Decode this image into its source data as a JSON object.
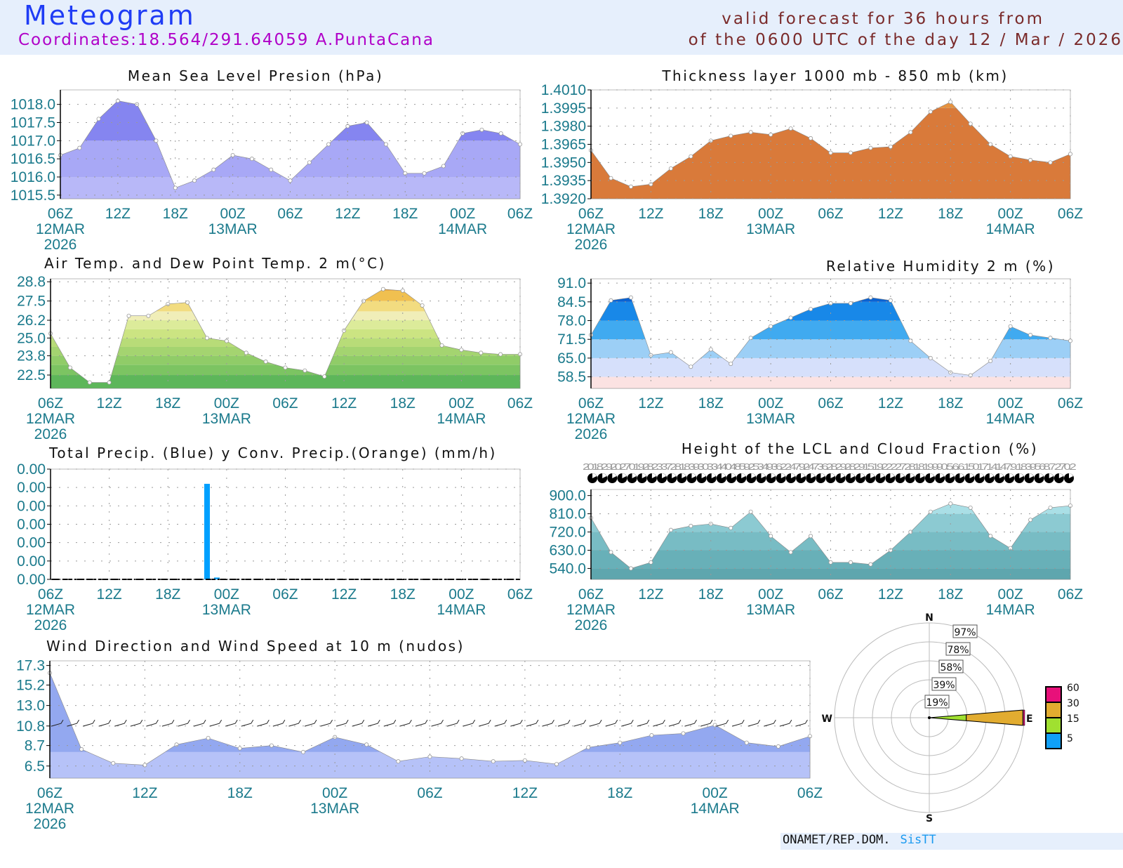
{
  "header": {
    "title": "Meteogram",
    "coordinates": "Coordinates:18.564/291.64059  A.PuntaCana",
    "valid_line1": "valid forecast for 36 hours from",
    "valid_line2": "of the 0600 UTC of the day 12 / Mar / 2026"
  },
  "footer": {
    "org": "ONAMET/REP.DOM.",
    "brand": "SisTT"
  },
  "x_axis": {
    "hours": [
      0,
      6,
      12,
      18,
      24,
      30,
      36,
      42,
      48
    ],
    "labels": [
      "06Z",
      "12Z",
      "18Z",
      "00Z",
      "06Z",
      "12Z",
      "18Z",
      "00Z",
      "06Z"
    ],
    "dates": [
      "12MAR",
      "",
      "",
      "13MAR",
      "",
      "",
      "",
      "14MAR",
      ""
    ],
    "year": "2026"
  },
  "chart_data": [
    {
      "id": "mslp",
      "type": "area",
      "title": "Mean Sea Level Presion (hPa)",
      "x_hours": [
        0,
        2,
        4,
        6,
        8,
        10,
        12,
        14,
        16,
        18,
        20,
        22,
        24,
        26,
        28,
        30,
        32,
        34,
        36,
        38,
        40,
        42,
        44,
        46,
        48
      ],
      "values": [
        1016.6,
        1016.8,
        1017.6,
        1018.1,
        1018.0,
        1017.0,
        1015.7,
        1015.9,
        1016.2,
        1016.6,
        1016.5,
        1016.2,
        1015.9,
        1016.4,
        1016.9,
        1017.4,
        1017.5,
        1016.9,
        1016.1,
        1016.1,
        1016.3,
        1017.2,
        1017.3,
        1017.2,
        1016.9
      ],
      "ylim": [
        1015.4,
        1018.4
      ],
      "yticks": [
        1015.5,
        1016.0,
        1016.5,
        1017.0,
        1017.5,
        1018.0
      ],
      "ytick_labels": [
        "1015.5",
        "1016.0",
        "1016.5",
        "1017.0",
        "1017.5",
        "1018.0"
      ],
      "bands": [
        {
          "from": 1015.4,
          "to": 1016.0,
          "color": "#b8b8f8"
        },
        {
          "from": 1016.0,
          "to": 1017.0,
          "color": "#a8a8f6"
        },
        {
          "from": 1017.0,
          "to": 1018.4,
          "color": "#8585f0"
        }
      ]
    },
    {
      "id": "thickness",
      "type": "area",
      "title": "Thickness layer 1000 mb - 850 mb (km)",
      "x_hours": [
        0,
        2,
        4,
        6,
        8,
        10,
        12,
        14,
        16,
        18,
        20,
        22,
        24,
        26,
        28,
        30,
        32,
        34,
        36,
        38,
        40,
        42,
        44,
        46,
        48
      ],
      "values": [
        1.396,
        1.3937,
        1.393,
        1.3932,
        1.3945,
        1.3955,
        1.3968,
        1.3972,
        1.3975,
        1.3973,
        1.3978,
        1.397,
        1.3958,
        1.3958,
        1.3962,
        1.3963,
        1.3975,
        1.3992,
        1.4,
        1.3982,
        1.3965,
        1.3955,
        1.3952,
        1.395,
        1.3957
      ],
      "ylim": [
        1.392,
        1.401
      ],
      "yticks": [
        1.392,
        1.3935,
        1.395,
        1.3965,
        1.398,
        1.3995,
        1.401
      ],
      "ytick_labels": [
        "1.3920",
        "1.3935",
        "1.3950",
        "1.3965",
        "1.3980",
        "1.3995",
        "1.4010"
      ],
      "bands": [
        {
          "from": 1.392,
          "to": 1.3995,
          "color": "#d97a3a"
        },
        {
          "from": 1.3995,
          "to": 1.401,
          "color": "#e6923e"
        }
      ]
    },
    {
      "id": "temperature",
      "type": "area",
      "title": "Air Temp. and Dew Point Temp. 2 m(°C)",
      "x_hours": [
        0,
        2,
        4,
        6,
        8,
        10,
        12,
        14,
        16,
        18,
        20,
        22,
        24,
        26,
        28,
        30,
        32,
        34,
        36,
        38,
        40,
        42,
        44,
        46,
        48
      ],
      "values": [
        25.3,
        23.0,
        22.0,
        22.0,
        26.5,
        26.5,
        27.3,
        27.4,
        25.0,
        24.8,
        24.0,
        23.4,
        23.0,
        22.8,
        22.4,
        25.5,
        27.5,
        28.3,
        28.2,
        27.2,
        24.5,
        24.2,
        24.0,
        23.9,
        23.9
      ],
      "ylim": [
        21.6,
        29.0
      ],
      "yticks": [
        22.5,
        23.8,
        25.0,
        26.2,
        27.5,
        28.8
      ],
      "ytick_labels": [
        "22.5",
        "23.8",
        "25.0",
        "26.2",
        "27.5",
        "28.8"
      ],
      "bands": [
        {
          "from": 21.6,
          "to": 22.5,
          "color": "#5db65a"
        },
        {
          "from": 22.5,
          "to": 23.2,
          "color": "#7cc462"
        },
        {
          "from": 23.2,
          "to": 23.8,
          "color": "#90cc68"
        },
        {
          "from": 23.8,
          "to": 24.4,
          "color": "#a4d470"
        },
        {
          "from": 24.4,
          "to": 25.0,
          "color": "#b8dc78"
        },
        {
          "from": 25.0,
          "to": 25.6,
          "color": "#cce482"
        },
        {
          "from": 25.6,
          "to": 26.2,
          "color": "#dceb9a"
        },
        {
          "from": 26.2,
          "to": 26.8,
          "color": "#f0eeb8"
        },
        {
          "from": 26.8,
          "to": 27.5,
          "color": "#f2dc80"
        },
        {
          "from": 27.5,
          "to": 28.2,
          "color": "#f0c050"
        },
        {
          "from": 28.2,
          "to": 29.0,
          "color": "#e8a030"
        }
      ]
    },
    {
      "id": "humidity",
      "type": "area",
      "title": "Relative Humidity 2 m (%)",
      "x_hours": [
        0,
        2,
        4,
        6,
        8,
        10,
        12,
        14,
        16,
        18,
        20,
        22,
        24,
        26,
        28,
        30,
        32,
        34,
        36,
        38,
        40,
        42,
        44,
        46,
        48
      ],
      "values": [
        73,
        85,
        86,
        66,
        67,
        62,
        68,
        63,
        72,
        76,
        79,
        82,
        84,
        84,
        86,
        85,
        71,
        65,
        60,
        59,
        64,
        76,
        73,
        72,
        71
      ],
      "ylim": [
        54.5,
        92.5
      ],
      "yticks": [
        58.5,
        65.0,
        71.5,
        78.0,
        84.5,
        91.0
      ],
      "ytick_labels": [
        "58.5",
        "65.0",
        "71.5",
        "78.0",
        "84.5",
        "91.0"
      ],
      "bands": [
        {
          "from": 54.5,
          "to": 58.5,
          "color": "#fbe2e2"
        },
        {
          "from": 58.5,
          "to": 65,
          "color": "#d6e0fb"
        },
        {
          "from": 65,
          "to": 71.5,
          "color": "#9ccff6"
        },
        {
          "from": 71.5,
          "to": 78,
          "color": "#40aaf0"
        },
        {
          "from": 78,
          "to": 84.5,
          "color": "#1888e8"
        },
        {
          "from": 84.5,
          "to": 91,
          "color": "#0a62d2"
        },
        {
          "from": 91,
          "to": 92.5,
          "color": "#0040a0"
        }
      ]
    },
    {
      "id": "precip",
      "type": "bar",
      "title": "Total Precip. (Blue) y Conv. Precip.(Orange) (mm/h)",
      "series": [
        {
          "name": "Total Precip.",
          "color": "#00a0ff",
          "x_hours": [
            16,
            17
          ],
          "values": [
            0.0052,
            0.0001
          ]
        },
        {
          "name": "Conv. Precip.",
          "color": "#f0a020",
          "x_hours": [],
          "values": []
        }
      ],
      "ylim": [
        0,
        0.006
      ],
      "yticks": [
        0,
        0.001,
        0.002,
        0.003,
        0.004,
        0.005,
        0.006
      ],
      "ytick_labels": [
        "0.00",
        "0.00",
        "0.00",
        "0.00",
        "0.00",
        "0.00",
        "0.00"
      ]
    },
    {
      "id": "lcl",
      "type": "area",
      "title": "Height of the LCL and Cloud Fraction (%)",
      "x_hours": [
        0,
        2,
        4,
        6,
        8,
        10,
        12,
        14,
        16,
        18,
        20,
        22,
        24,
        26,
        28,
        30,
        32,
        34,
        36,
        38,
        40,
        42,
        44,
        46,
        48
      ],
      "values": [
        790,
        620,
        540,
        570,
        730,
        750,
        760,
        740,
        820,
        700,
        620,
        700,
        570,
        570,
        560,
        630,
        720,
        820,
        860,
        840,
        700,
        640,
        780,
        840,
        850
      ],
      "ylim": [
        486,
        930
      ],
      "yticks": [
        540,
        630,
        720,
        810,
        900
      ],
      "ytick_labels": [
        "540.0",
        "630.0",
        "720.0",
        "810.0",
        "900.0"
      ],
      "bands": [
        {
          "from": 486,
          "to": 540,
          "color": "#5ea6ae"
        },
        {
          "from": 540,
          "to": 630,
          "color": "#68b0b8"
        },
        {
          "from": 630,
          "to": 720,
          "color": "#78bcc4"
        },
        {
          "from": 720,
          "to": 810,
          "color": "#8ccad2"
        },
        {
          "from": 810,
          "to": 930,
          "color": "#aadfe6"
        }
      ],
      "cloud_fraction_text": "2018292027019282337281839303344048592534936224792473628292829151922227281819990.5.6.6.1501714147.9.1839568.7.270.2"
    },
    {
      "id": "wind",
      "type": "area",
      "title": "Wind Direction and Wind Speed at 10 m (nudos)",
      "x_hours": [
        0,
        2,
        4,
        6,
        8,
        10,
        12,
        14,
        16,
        18,
        20,
        22,
        24,
        26,
        28,
        30,
        32,
        34,
        36,
        38,
        40,
        42,
        44,
        46,
        48
      ],
      "values": [
        16.5,
        8.3,
        6.8,
        6.6,
        8.8,
        9.5,
        8.4,
        8.7,
        8.0,
        9.6,
        8.8,
        7.0,
        7.5,
        7.3,
        7.0,
        7.1,
        6.7,
        8.5,
        9.0,
        9.8,
        10.0,
        10.9,
        9.0,
        8.6,
        9.7
      ],
      "ylim": [
        5.2,
        17.8
      ],
      "yticks": [
        6.5,
        8.7,
        10.8,
        13.0,
        15.2,
        17.3
      ],
      "ytick_labels": [
        "6.5",
        "8.7",
        "10.8",
        "13.0",
        "15.2",
        "17.3"
      ],
      "bands": [
        {
          "from": 5.2,
          "to": 8.0,
          "color": "#b6c2f8"
        },
        {
          "from": 8.0,
          "to": 17.8,
          "color": "#93a8f0"
        }
      ]
    }
  ],
  "wind_rose": {
    "compass": [
      "N",
      "E",
      "S",
      "W"
    ],
    "ring_labels": [
      "19%",
      "39%",
      "58%",
      "78%",
      "97%"
    ],
    "direction": "E",
    "segments": [
      {
        "class": "5-15",
        "color": "#a0e030",
        "percent": 38
      },
      {
        "class": "15-30",
        "color": "#e2ac30",
        "percent": 96
      },
      {
        "class": "30-60",
        "color": "#e8107a",
        "percent": 97
      }
    ],
    "legend": [
      {
        "label": "60",
        "color": "#e8107a"
      },
      {
        "label": "30",
        "color": "#e2ac30"
      },
      {
        "label": "15",
        "color": "#a0e030"
      },
      {
        "label": "5",
        "color": "#10a0f8"
      }
    ]
  }
}
